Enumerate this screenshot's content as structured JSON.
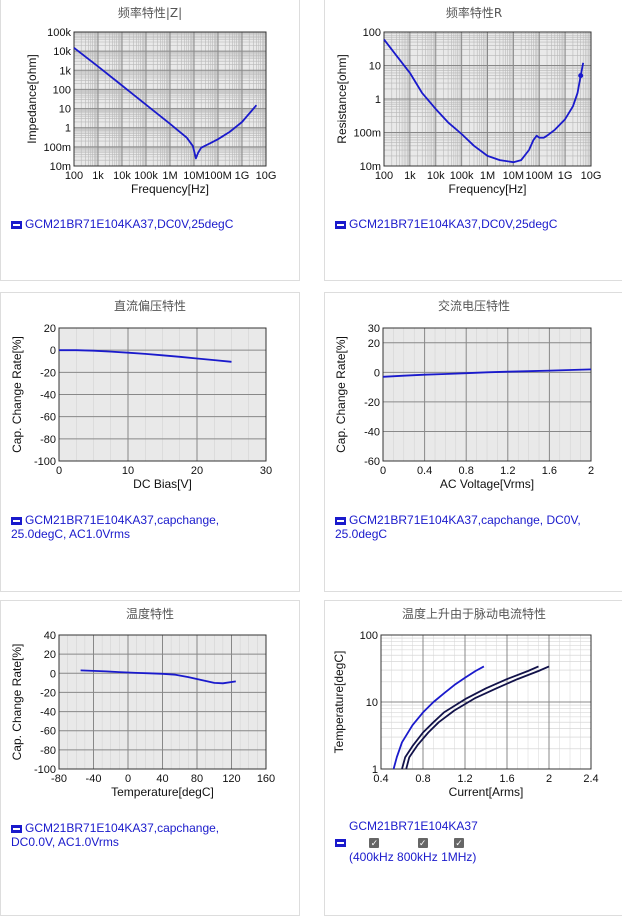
{
  "chart_data": [
    {
      "id": "c1",
      "type": "line",
      "title": "频率特性|Z|",
      "xlabel": "Frequency[Hz]",
      "ylabel": "Impedance[ohm]",
      "xscale": "log",
      "yscale": "log",
      "xlim": [
        100,
        10000000000
      ],
      "ylim": [
        0.01,
        100000
      ],
      "xticks": [
        100,
        1000,
        10000,
        100000,
        1000000,
        10000000,
        100000000,
        1000000000,
        10000000000
      ],
      "xticklabels": [
        "100",
        "1k",
        "10k",
        "100k",
        "1M",
        "10M",
        "100M",
        "1G",
        "10G"
      ],
      "yticks": [
        0.01,
        0.1,
        1,
        10,
        100,
        1000,
        10000,
        100000
      ],
      "yticklabels": [
        "10m",
        "100m",
        "1",
        "10",
        "100",
        "1k",
        "10k",
        "100k"
      ],
      "grid": true,
      "series": [
        {
          "name": "GCM21BR71E104KA37,DC0V,25degC",
          "x": [
            100,
            1000,
            10000,
            100000,
            1000000,
            5000000,
            9000000,
            12000000,
            15000000,
            20000000,
            50000000,
            100000000,
            300000000,
            1000000000,
            4000000000
          ],
          "y": [
            15000,
            1600,
            160,
            16,
            1.6,
            0.3,
            0.11,
            0.025,
            0.05,
            0.09,
            0.16,
            0.25,
            0.6,
            2,
            15
          ]
        }
      ],
      "legend": [
        "GCM21BR71E104KA37,DC0V,25degC"
      ]
    },
    {
      "id": "c2",
      "type": "line",
      "title": "频率特性R",
      "xlabel": "Frequency[Hz]",
      "ylabel": "Resistance[ohm]",
      "xscale": "log",
      "yscale": "log",
      "xlim": [
        100,
        10000000000
      ],
      "ylim": [
        0.01,
        100
      ],
      "xticks": [
        100,
        1000,
        10000,
        100000,
        1000000,
        10000000,
        100000000,
        1000000000,
        10000000000
      ],
      "xticklabels": [
        "100",
        "1k",
        "10k",
        "100k",
        "1M",
        "10M",
        "100M",
        "1G",
        "10G"
      ],
      "yticks": [
        0.01,
        0.1,
        1,
        10,
        100
      ],
      "yticklabels": [
        "10m",
        "100m",
        "1",
        "10",
        "100"
      ],
      "grid": true,
      "series": [
        {
          "name": "GCM21BR71E104KA37,DC0V,25degC",
          "x": [
            100,
            300,
            1000,
            3000,
            10000,
            30000,
            100000,
            300000,
            1000000,
            3000000,
            10000000,
            20000000,
            40000000,
            60000000,
            80000000,
            100000000,
            150000000,
            200000000,
            400000000,
            1000000000,
            2000000000,
            3000000000,
            4000000000,
            5000000000
          ],
          "y": [
            60,
            20,
            6,
            1.5,
            0.5,
            0.2,
            0.09,
            0.04,
            0.02,
            0.015,
            0.013,
            0.015,
            0.03,
            0.06,
            0.08,
            0.07,
            0.07,
            0.08,
            0.12,
            0.25,
            0.6,
            1.5,
            5,
            12
          ]
        }
      ],
      "legend": [
        "GCM21BR71E104KA37,DC0V,25degC"
      ]
    },
    {
      "id": "c3",
      "type": "line",
      "title": "直流偏压特性",
      "xlabel": "DC Bias[V]",
      "ylabel": "Cap. Change Rate[%]",
      "xlim": [
        0,
        30
      ],
      "ylim": [
        -100,
        20
      ],
      "xticks": [
        0,
        10,
        20,
        30
      ],
      "yticks": [
        -100,
        -80,
        -60,
        -40,
        -20,
        0,
        20
      ],
      "grid": true,
      "series": [
        {
          "name": "GCM21BR71E104KA37,capchange, 25.0degC, AC1.0Vrms",
          "x": [
            0,
            2.5,
            5,
            7.5,
            10,
            12.5,
            15,
            17.5,
            20,
            22.5,
            25
          ],
          "y": [
            0,
            0,
            -0.5,
            -1.3,
            -2.3,
            -3.4,
            -4.6,
            -6,
            -7.5,
            -9,
            -10.5
          ]
        }
      ],
      "legend": [
        "GCM21BR71E104KA37,capchange, 25.0degC, AC1.0Vrms"
      ]
    },
    {
      "id": "c4",
      "type": "line",
      "title": "交流电压特性",
      "xlabel": "AC Voltage[Vrms]",
      "ylabel": "Cap. Change Rate[%]",
      "xlim": [
        0,
        2
      ],
      "ylim": [
        -60,
        30
      ],
      "xticks": [
        0,
        0.4,
        0.8,
        1.2,
        1.6,
        2
      ],
      "yticks": [
        -60,
        -40,
        -20,
        0,
        20,
        30
      ],
      "grid": true,
      "series": [
        {
          "name": "GCM21BR71E104KA37,capchange, DC0V, 25.0degC",
          "x": [
            0,
            0.2,
            0.4,
            0.6,
            0.8,
            1.0,
            1.2,
            1.4,
            1.6,
            1.8,
            2.0
          ],
          "y": [
            -3,
            -2.3,
            -1.6,
            -1.1,
            -0.6,
            0,
            0.4,
            0.8,
            1.2,
            1.6,
            2
          ]
        }
      ],
      "legend": [
        "GCM21BR71E104KA37,capchange, DC0V, 25.0degC"
      ]
    },
    {
      "id": "c5",
      "type": "line",
      "title": "温度特性",
      "xlabel": "Temperature[degC]",
      "ylabel": "Cap. Change Rate[%]",
      "xlim": [
        -80,
        160
      ],
      "ylim": [
        -100,
        40
      ],
      "xticks": [
        -80,
        -40,
        0,
        40,
        80,
        120,
        160
      ],
      "yticks": [
        -100,
        -80,
        -60,
        -40,
        -20,
        0,
        20,
        40
      ],
      "grid": true,
      "series": [
        {
          "name": "GCM21BR71E104KA37,capchange, DC0.0V, AC1.0Vrms",
          "x": [
            -55,
            -40,
            -25,
            -10,
            0,
            10,
            25,
            40,
            55,
            70,
            85,
            100,
            110,
            125
          ],
          "y": [
            3,
            2.5,
            2,
            1.2,
            0.8,
            0.4,
            0,
            -0.5,
            -1.5,
            -4,
            -7,
            -10,
            -10.5,
            -8.5
          ]
        }
      ],
      "legend": [
        "GCM21BR71E104KA37,capchange, DC0.0V, AC1.0Vrms"
      ]
    },
    {
      "id": "c6",
      "type": "line",
      "title": "温度上升由于脉动电流特性",
      "xlabel": "Current[Arms]",
      "ylabel": "Temperature[degC]",
      "yscale": "log",
      "xlim": [
        0.4,
        2.4
      ],
      "ylim": [
        1,
        100
      ],
      "xticks": [
        0.4,
        0.8,
        1.2,
        1.6,
        2.0,
        2.4
      ],
      "yticks": [
        1,
        10,
        100
      ],
      "grid": true,
      "series": [
        {
          "name": "400kHz",
          "x": [
            0.52,
            0.55,
            0.6,
            0.7,
            0.8,
            0.9,
            1.0,
            1.1,
            1.2,
            1.3,
            1.38
          ],
          "y": [
            1,
            1.5,
            2.5,
            4.5,
            7,
            10,
            13.5,
            18,
            23,
            29,
            34
          ]
        },
        {
          "name": "800kHz",
          "x": [
            0.6,
            0.63,
            0.7,
            0.8,
            0.9,
            1.0,
            1.2,
            1.4,
            1.6,
            1.8,
            1.9
          ],
          "y": [
            1,
            1.5,
            2.2,
            3.5,
            5,
            7,
            11,
            16,
            22,
            29,
            34
          ]
        },
        {
          "name": "1MHz",
          "x": [
            0.64,
            0.67,
            0.75,
            0.85,
            0.95,
            1.1,
            1.3,
            1.5,
            1.7,
            1.9,
            2.0
          ],
          "y": [
            1,
            1.5,
            2.3,
            3.5,
            5,
            7.5,
            11.5,
            16,
            22,
            29,
            34
          ]
        }
      ],
      "legend_title": "GCM21BR71E104KA37",
      "legend": [
        "400kHz",
        "800kHz",
        "1MHz"
      ]
    }
  ],
  "colors": {
    "curve": "#1a1acc",
    "curve_dark": "#12124a",
    "grid": "#999999",
    "grid_minor": "#cccccc",
    "plot_bg": "#e9e9e9"
  }
}
